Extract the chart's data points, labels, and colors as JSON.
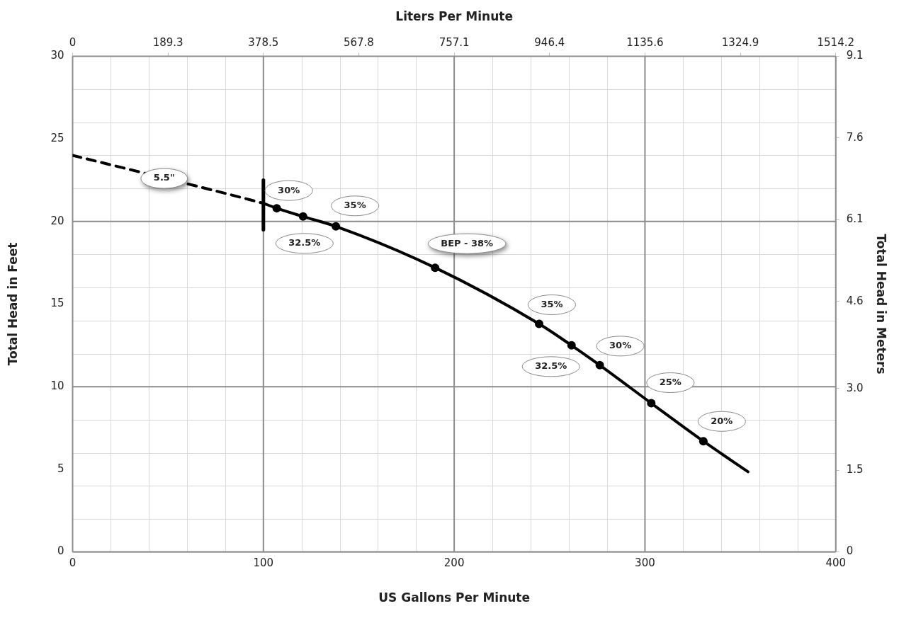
{
  "chart_data": {
    "type": "line",
    "xlabel": "US Gallons Per Minute",
    "ylabel": "Total Head in Feet",
    "y2label": "Total Head in Meters",
    "x2label": "Liters Per Minute",
    "xlim": [
      0,
      400
    ],
    "xticks": [
      0,
      100,
      200,
      300,
      400
    ],
    "ylim": [
      0,
      30
    ],
    "yticks": [
      0,
      5,
      10,
      15,
      20,
      25,
      30
    ],
    "y2lim": [
      0,
      9.1
    ],
    "y2ticks": [
      {
        "value": 0,
        "label": "0"
      },
      1.5,
      {
        "value": 3.0,
        "label": "3.0"
      },
      4.6,
      6.1,
      7.6,
      9.1
    ],
    "x2lim": [
      0,
      1514.2
    ],
    "x2ticks": [
      0,
      189.3,
      378.5,
      567.8,
      757.1,
      946.4,
      1135.6,
      1324.9,
      1514.2
    ],
    "grid": true,
    "legend": false,
    "series": [
      {
        "line_style": "dashed",
        "marker": "none",
        "color": "#000000",
        "x": [
          0,
          80,
          100
        ],
        "values": [
          24.0,
          21.7,
          21.1
        ]
      },
      {
        "line_style": "solid",
        "marker": "none",
        "color": "#000000",
        "x": [
          100,
          107,
          120.8,
          138,
          190,
          244.5,
          261.5,
          276.3,
          303.3,
          330.6,
          354
        ],
        "values": [
          21.1,
          20.8,
          20.3,
          19.7,
          17.2,
          13.8,
          12.5,
          11.3,
          9.0,
          6.7,
          4.85
        ]
      },
      {
        "line_style": "solid",
        "marker": "none",
        "color": "#000000",
        "x": [
          100,
          100
        ],
        "values": [
          19.5,
          22.5
        ]
      },
      {
        "type": "scatter",
        "marker": "circle",
        "color": "#000000",
        "x": [
          107,
          120.8,
          138,
          190,
          244.5,
          261.5,
          276.3,
          303.3,
          330.6
        ],
        "values": [
          20.8,
          20.3,
          19.7,
          17.2,
          13.8,
          12.5,
          11.3,
          9.0,
          6.7
        ]
      }
    ],
    "annotations": [
      {
        "text": "5.5\"",
        "x": 48,
        "y": 22.6
      },
      {
        "text": "30%",
        "x": 107,
        "y": 20.8
      },
      {
        "text": "32.5%",
        "x": 120.8,
        "y": 20.3
      },
      {
        "text": "35%",
        "x": 138,
        "y": 19.7
      },
      {
        "text": "BEP - 38%",
        "x": 190,
        "y": 17.2
      },
      {
        "text": "35%",
        "x": 244.5,
        "y": 13.8
      },
      {
        "text": "32.5%",
        "x": 261.5,
        "y": 12.5
      },
      {
        "text": "30%",
        "x": 276.3,
        "y": 11.3
      },
      {
        "text": "25%",
        "x": 303.3,
        "y": 9.0
      },
      {
        "text": "20%",
        "x": 330.6,
        "y": 6.7
      }
    ]
  }
}
